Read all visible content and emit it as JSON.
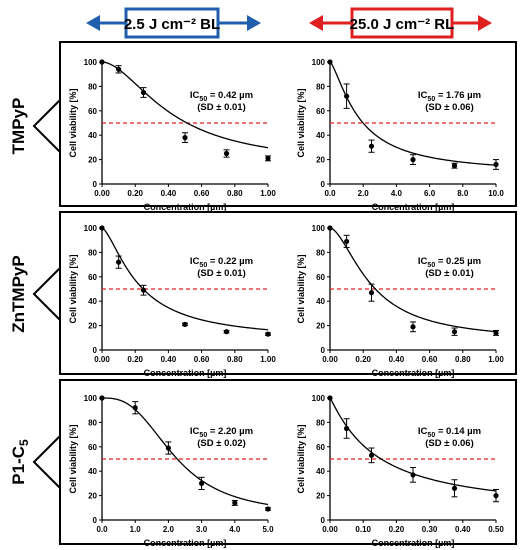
{
  "header": {
    "left_label": "2.5 J cm⁻² BL",
    "right_label": "25.0 J cm⁻² RL",
    "left_color": "#1f5fae",
    "right_color": "#e02020"
  },
  "rows": [
    {
      "compound_main": "TMPyP",
      "compound_sub": ""
    },
    {
      "compound_main": "ZnTMPyP",
      "compound_sub": ""
    },
    {
      "compound_main": "P1-C",
      "compound_sub": "5"
    }
  ],
  "colors": {
    "threshold": "#e02020",
    "curve": "#000000"
  },
  "chart_data": [
    {
      "type": "scatter",
      "row": 0,
      "col": 0,
      "xlabel": "Concentration [µm]",
      "ylabel": "Cell viability [%]",
      "xlim": [
        0,
        1.0
      ],
      "ylim": [
        0,
        100
      ],
      "xticks": [
        "0.00",
        "0.20",
        "0.40",
        "0.60",
        "0.80",
        "1.00"
      ],
      "yticks": [
        "0",
        "20",
        "40",
        "60",
        "80",
        "100"
      ],
      "x": [
        0,
        0.1,
        0.25,
        0.5,
        0.75,
        1.0
      ],
      "y": [
        100,
        94,
        75,
        38,
        25,
        21
      ],
      "err": [
        0,
        3,
        4,
        4,
        3,
        2
      ],
      "threshold": 50,
      "fit": {
        "ic50": 0.42,
        "hill": 1.8,
        "bottom": 15,
        "top": 100
      },
      "ic50_line": "IC",
      "ic50_sub": "50",
      "ic50_value": "= 0.42 µm",
      "sd_text": "(SD ± 0.01)"
    },
    {
      "type": "scatter",
      "row": 0,
      "col": 1,
      "xlabel": "Concentration [µm]",
      "ylabel": "Cell viability [%]",
      "xlim": [
        0,
        10.0
      ],
      "ylim": [
        0,
        100
      ],
      "xticks": [
        "0.0",
        "2.0",
        "4.0",
        "6.0",
        "8.0",
        "10.0"
      ],
      "yticks": [
        "0",
        "20",
        "40",
        "60",
        "80",
        "100"
      ],
      "x": [
        0,
        1.0,
        2.5,
        5.0,
        7.5,
        10.0
      ],
      "y": [
        100,
        72,
        31,
        20,
        15,
        16
      ],
      "err": [
        0,
        10,
        5,
        4,
        2,
        4
      ],
      "threshold": 50,
      "fit": {
        "ic50": 1.76,
        "hill": 1.4,
        "bottom": 8,
        "top": 100
      },
      "ic50_line": "IC",
      "ic50_sub": "50",
      "ic50_value": "= 1.76 µm",
      "sd_text": "(SD ± 0.06)"
    },
    {
      "type": "scatter",
      "row": 1,
      "col": 0,
      "xlabel": "Concentration [µm]",
      "ylabel": "Cell viability [%]",
      "xlim": [
        0,
        1.0
      ],
      "ylim": [
        0,
        100
      ],
      "xticks": [
        "0.00",
        "0.20",
        "0.40",
        "0.60",
        "0.80",
        "1.00"
      ],
      "yticks": [
        "0",
        "20",
        "40",
        "60",
        "80",
        "100"
      ],
      "x": [
        0,
        0.1,
        0.25,
        0.5,
        0.75,
        1.0
      ],
      "y": [
        100,
        72,
        49,
        21,
        15,
        13
      ],
      "err": [
        0,
        5,
        4,
        1,
        1,
        1
      ],
      "threshold": 50,
      "fit": {
        "ic50": 0.22,
        "hill": 1.5,
        "bottom": 8,
        "top": 100
      },
      "ic50_line": "IC",
      "ic50_sub": "50",
      "ic50_value": "= 0.22 µm",
      "sd_text": "(SD ± 0.01)"
    },
    {
      "type": "scatter",
      "row": 1,
      "col": 1,
      "xlabel": "Concentration [µm]",
      "ylabel": "Cell viability [%]",
      "xlim": [
        0,
        1.0
      ],
      "ylim": [
        0,
        100
      ],
      "xticks": [
        "0.00",
        "0.20",
        "0.40",
        "0.60",
        "0.80",
        "1.00"
      ],
      "yticks": [
        "0",
        "20",
        "40",
        "60",
        "80",
        "100"
      ],
      "x": [
        0,
        0.1,
        0.25,
        0.5,
        0.75,
        1.0
      ],
      "y": [
        100,
        89,
        47,
        19,
        15,
        14
      ],
      "err": [
        0,
        5,
        7,
        4,
        3,
        2
      ],
      "threshold": 50,
      "fit": {
        "ic50": 0.25,
        "hill": 1.7,
        "bottom": 7,
        "top": 100
      },
      "ic50_line": "IC",
      "ic50_sub": "50",
      "ic50_value": "= 0.25 µm",
      "sd_text": "(SD ± 0.01)"
    },
    {
      "type": "scatter",
      "row": 2,
      "col": 0,
      "xlabel": "Concentration [µm]",
      "ylabel": "Cell viability [%]",
      "xlim": [
        0,
        5.0
      ],
      "ylim": [
        0,
        100
      ],
      "xticks": [
        "0.0",
        "1.0",
        "2.0",
        "3.0",
        "4.0",
        "5.0"
      ],
      "yticks": [
        "0",
        "20",
        "40",
        "60",
        "80",
        "100"
      ],
      "x": [
        0,
        1.0,
        2.0,
        3.0,
        4.0,
        5.0
      ],
      "y": [
        100,
        92,
        59,
        30,
        14,
        9
      ],
      "err": [
        0,
        5,
        5,
        5,
        2,
        1
      ],
      "threshold": 50,
      "fit": {
        "ic50": 2.2,
        "hill": 2.8,
        "bottom": 4,
        "top": 100
      },
      "ic50_line": "IC",
      "ic50_sub": "50",
      "ic50_value": "= 2.20 µm",
      "sd_text": "(SD ± 0.02)"
    },
    {
      "type": "scatter",
      "row": 2,
      "col": 1,
      "xlabel": "Concentration [µm]",
      "ylabel": "Cell viability [%]",
      "xlim": [
        0,
        0.5
      ],
      "ylim": [
        0,
        100
      ],
      "xticks": [
        "0.00",
        "0.10",
        "0.20",
        "0.30",
        "0.40",
        "0.50"
      ],
      "yticks": [
        "0",
        "20",
        "40",
        "60",
        "80",
        "100"
      ],
      "x": [
        0,
        0.05,
        0.125,
        0.25,
        0.375,
        0.5
      ],
      "y": [
        100,
        75,
        53,
        37,
        26,
        20
      ],
      "err": [
        0,
        8,
        6,
        6,
        7,
        5
      ],
      "threshold": 50,
      "fit": {
        "ic50": 0.14,
        "hill": 1.1,
        "bottom": 5,
        "top": 100
      },
      "ic50_line": "IC",
      "ic50_sub": "50",
      "ic50_value": "= 0.14 µm",
      "sd_text": "(SD ± 0.06)"
    }
  ]
}
